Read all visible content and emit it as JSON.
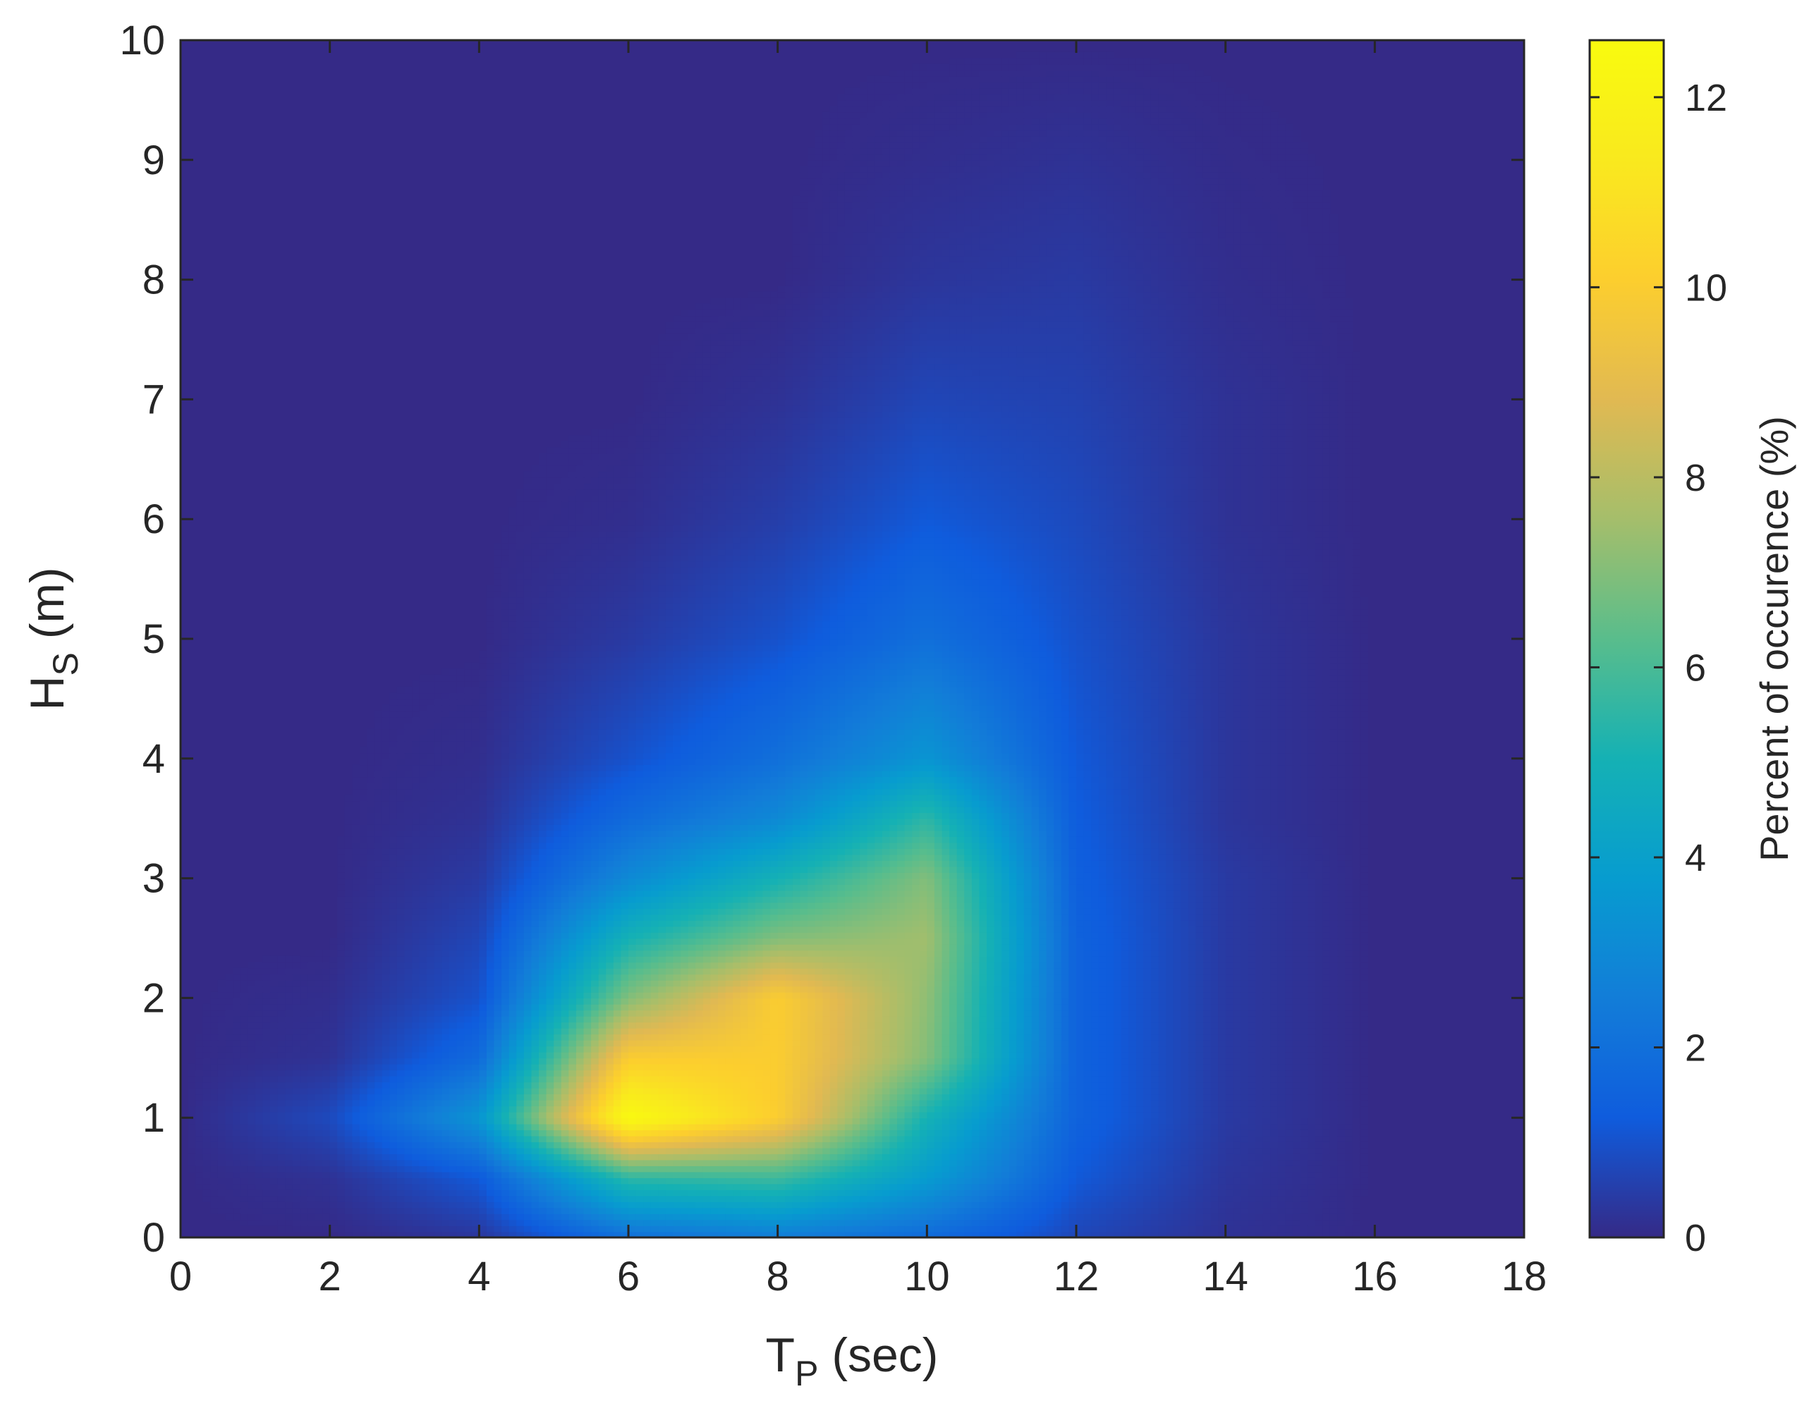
{
  "chart_data": {
    "type": "heatmap",
    "x": [
      0,
      2,
      4,
      6,
      8,
      10,
      12,
      14,
      16,
      18
    ],
    "y": [
      0,
      0.5,
      1,
      1.5,
      2,
      2.5,
      3,
      3.5,
      4,
      5,
      6,
      7,
      8,
      9,
      10
    ],
    "z": [
      [
        0,
        0,
        0.3,
        2.0,
        2.5,
        1.8,
        0.7,
        0.2,
        0,
        0
      ],
      [
        0,
        0.2,
        1.2,
        5.5,
        5.8,
        3.8,
        1.2,
        0.3,
        0,
        0
      ],
      [
        0,
        0.8,
        3.5,
        12.5,
        10.0,
        5.0,
        1.5,
        0.4,
        0,
        0
      ],
      [
        0,
        0.2,
        1.8,
        10.0,
        10.0,
        7.0,
        1.5,
        0.4,
        0,
        0
      ],
      [
        0,
        0.1,
        1.0,
        7.0,
        10.0,
        7.2,
        1.5,
        0.4,
        0,
        0
      ],
      [
        0,
        0,
        0.7,
        5.0,
        7.0,
        7.5,
        1.5,
        0.4,
        0,
        0
      ],
      [
        0,
        0,
        0.4,
        3.0,
        5.0,
        7.0,
        1.4,
        0.4,
        0,
        0
      ],
      [
        0,
        0,
        0.2,
        1.8,
        3.0,
        5.5,
        1.3,
        0.3,
        0,
        0
      ],
      [
        0,
        0,
        0.1,
        1.0,
        2.0,
        3.5,
        1.2,
        0.3,
        0,
        0
      ],
      [
        0,
        0,
        0,
        0.4,
        1.0,
        2.0,
        1.0,
        0.3,
        0,
        0
      ],
      [
        0,
        0,
        0,
        0.1,
        0.5,
        1.2,
        0.8,
        0.2,
        0,
        0
      ],
      [
        0,
        0,
        0,
        0,
        0.2,
        0.7,
        0.6,
        0.2,
        0,
        0
      ],
      [
        0,
        0,
        0,
        0,
        0,
        0.3,
        0.4,
        0.1,
        0,
        0
      ],
      [
        0,
        0,
        0,
        0,
        0,
        0.1,
        0.2,
        0.05,
        0,
        0
      ],
      [
        0,
        0,
        0,
        0,
        0,
        0,
        0,
        0,
        0,
        0
      ]
    ],
    "xlabel": {
      "main": "T",
      "sub": "P",
      "rest": " (sec)"
    },
    "ylabel": {
      "main": "H",
      "sub": "S",
      "rest": " (m)"
    },
    "xlim": [
      0,
      18
    ],
    "ylim": [
      0,
      10
    ],
    "xticks": [
      0,
      2,
      4,
      6,
      8,
      10,
      12,
      14,
      16,
      18
    ],
    "yticks": [
      0,
      1,
      2,
      3,
      4,
      5,
      6,
      7,
      8,
      9,
      10
    ],
    "colorbar": {
      "label": "Percent of occurence (%)",
      "range": [
        0,
        12.6
      ],
      "ticks": [
        0,
        2,
        4,
        6,
        8,
        10,
        12
      ],
      "colormap": "parula"
    },
    "grid": false
  }
}
